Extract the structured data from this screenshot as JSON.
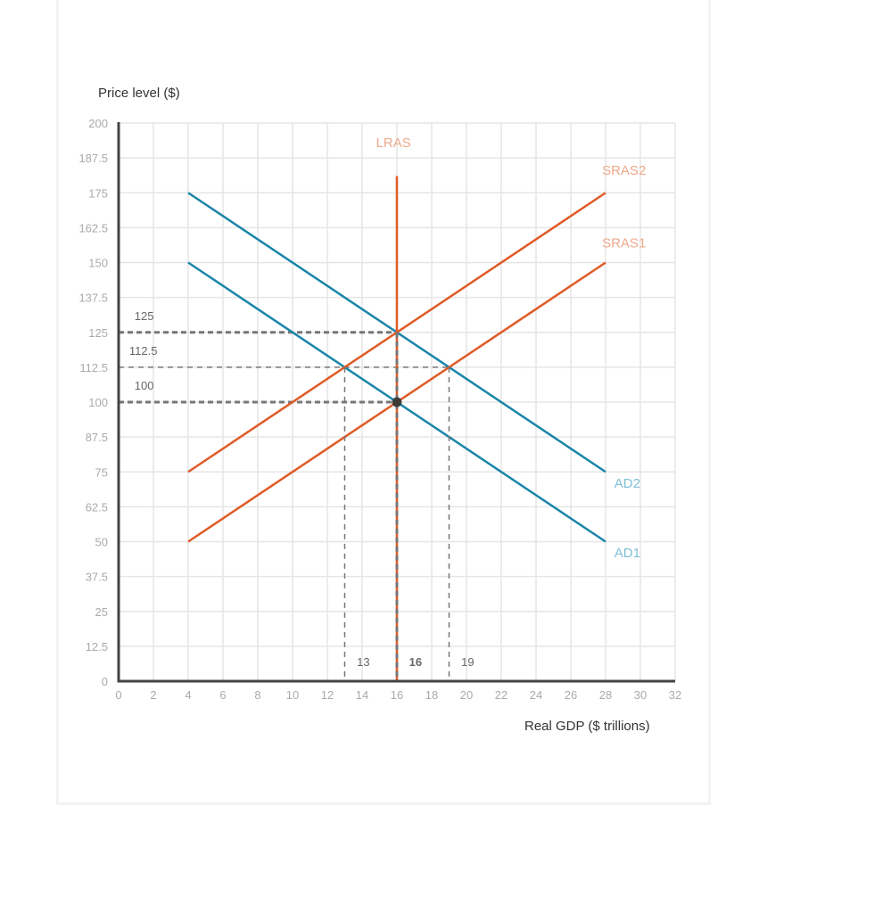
{
  "chart_data": {
    "type": "line",
    "title": "",
    "xlabel": "Real GDP ($ trillions)",
    "ylabel": "Price level ($)",
    "xlim": [
      0,
      32
    ],
    "ylim": [
      0,
      200
    ],
    "x_ticks": [
      0,
      2,
      4,
      6,
      8,
      10,
      12,
      14,
      16,
      18,
      20,
      22,
      24,
      26,
      28,
      30,
      32
    ],
    "y_ticks": [
      0,
      12.5,
      25,
      37.5,
      50,
      62.5,
      75,
      87.5,
      100,
      112.5,
      125,
      137.5,
      150,
      162.5,
      175,
      187.5,
      200
    ],
    "grid": true,
    "series": [
      {
        "name": "AD2",
        "color": "#1a85a8",
        "label_color": "#7fbfd6",
        "points": [
          [
            4,
            175
          ],
          [
            28,
            75
          ]
        ]
      },
      {
        "name": "AD1",
        "color": "#1a85a8",
        "label_color": "#7fbfd6",
        "points": [
          [
            4,
            150
          ],
          [
            28,
            50
          ]
        ]
      },
      {
        "name": "SRAS2",
        "color": "#e05a26",
        "label_color": "#eea98a",
        "points": [
          [
            4,
            75
          ],
          [
            28,
            175
          ]
        ]
      },
      {
        "name": "SRAS1",
        "color": "#e05a26",
        "label_color": "#eea98a",
        "points": [
          [
            4,
            50
          ],
          [
            28,
            150
          ]
        ]
      },
      {
        "name": "LRAS",
        "color": "#e05a26",
        "label_color": "#eea98a",
        "points": [
          [
            16,
            181
          ],
          [
            16,
            0
          ]
        ]
      }
    ],
    "reference_lines": [
      {
        "type": "horizontal",
        "y": 125,
        "x_from": 0,
        "x_to": 16,
        "weight": "thick"
      },
      {
        "type": "horizontal",
        "y": 112.5,
        "x_from": 0,
        "x_to": 19,
        "weight": "thin"
      },
      {
        "type": "horizontal",
        "y": 100,
        "x_from": 0,
        "x_to": 16,
        "weight": "thick"
      },
      {
        "type": "vertical",
        "x": 13,
        "y_from": 112.5,
        "y_to": 0,
        "weight": "thin"
      },
      {
        "type": "vertical",
        "x": 16,
        "y_from": 125,
        "y_to": 0,
        "weight": "thick"
      },
      {
        "type": "vertical",
        "x": 19,
        "y_from": 112.5,
        "y_to": 0,
        "weight": "thin"
      }
    ],
    "annotations": [
      {
        "text": "125",
        "x": 0.5,
        "y": 131
      },
      {
        "text": "112.5",
        "x": 0.2,
        "y": 118.5
      },
      {
        "text": "100",
        "x": 0.5,
        "y": 106
      },
      {
        "text": "13",
        "x": 13.7,
        "y": 7,
        "bold": false
      },
      {
        "text": "16",
        "x": 16.7,
        "y": 7,
        "bold": true
      },
      {
        "text": "19",
        "x": 19.7,
        "y": 7,
        "bold": false
      }
    ],
    "points": [
      {
        "name": "equilibrium",
        "x": 16,
        "y": 100,
        "color": "#333333"
      }
    ],
    "curve_labels": [
      {
        "text": "LRAS",
        "x": 14.8,
        "y": 193
      },
      {
        "text": "SRAS2",
        "x": 27.8,
        "y": 183
      },
      {
        "text": "SRAS1",
        "x": 27.8,
        "y": 157
      },
      {
        "text": "AD2",
        "x": 28.5,
        "y": 71
      },
      {
        "text": "AD1",
        "x": 28.5,
        "y": 46
      }
    ]
  },
  "labels": {
    "y_axis_title": "Price level ($)",
    "x_axis_title": "Real GDP ($ trillions)"
  }
}
